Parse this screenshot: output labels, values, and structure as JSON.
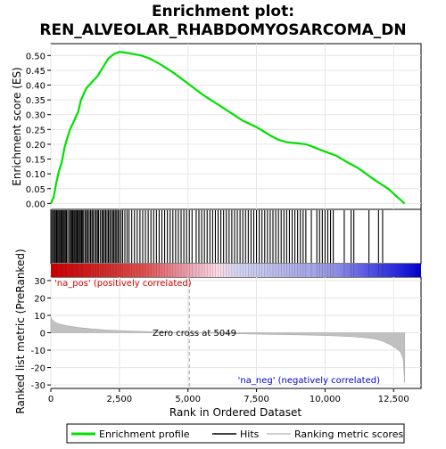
{
  "chart_data": {
    "type": "line",
    "title_lines": [
      "Enrichment plot:",
      "REN_ALVEOLAR_RHABDOMYOSARCOMA_DN"
    ],
    "enrichment": {
      "ylabel": "Enrichment score (ES)",
      "ylim": [
        -0.02,
        0.54
      ],
      "yticks": [
        0.0,
        0.05,
        0.1,
        0.15,
        0.2,
        0.25,
        0.3,
        0.35,
        0.4,
        0.45,
        0.5
      ],
      "ytick_labels": [
        "0.00",
        "0.05",
        "0.10",
        "0.15",
        "0.20",
        "0.25",
        "0.30",
        "0.35",
        "0.40",
        "0.45",
        "0.50"
      ],
      "line_color": "#00e000",
      "x": [
        0,
        100,
        200,
        300,
        400,
        500,
        600,
        700,
        800,
        900,
        1000,
        1100,
        1200,
        1300,
        1400,
        1500,
        1700,
        1900,
        2100,
        2300,
        2500,
        2700,
        3000,
        3300,
        3600,
        4000,
        4500,
        5000,
        5500,
        6000,
        6500,
        7000,
        7500,
        8000,
        8300,
        8600,
        8800,
        9000,
        9300,
        9600,
        10000,
        10400,
        10800,
        11200,
        11500,
        11800,
        12000,
        12300,
        12600,
        12900
      ],
      "y": [
        0.0,
        0.02,
        0.07,
        0.11,
        0.14,
        0.19,
        0.22,
        0.25,
        0.27,
        0.29,
        0.31,
        0.35,
        0.37,
        0.39,
        0.4,
        0.41,
        0.43,
        0.46,
        0.49,
        0.505,
        0.512,
        0.51,
        0.505,
        0.5,
        0.49,
        0.47,
        0.44,
        0.405,
        0.37,
        0.34,
        0.31,
        0.28,
        0.258,
        0.23,
        0.215,
        0.207,
        0.205,
        0.203,
        0.2,
        0.19,
        0.175,
        0.162,
        0.14,
        0.12,
        0.1,
        0.08,
        0.068,
        0.05,
        0.025,
        0.0
      ]
    },
    "hits": {
      "positions": [
        40,
        90,
        130,
        170,
        210,
        250,
        290,
        330,
        370,
        410,
        450,
        490,
        530,
        570,
        620,
        680,
        720,
        760,
        800,
        840,
        880,
        920,
        960,
        1000,
        1040,
        1080,
        1120,
        1160,
        1200,
        1260,
        1300,
        1350,
        1400,
        1450,
        1500,
        1540,
        1600,
        1650,
        1700,
        1740,
        1800,
        1860,
        1900,
        1950,
        2000,
        2050,
        2100,
        2150,
        2200,
        2260,
        2300,
        2350,
        2400,
        2450,
        2500,
        2560,
        2620,
        2700,
        2780,
        2850,
        2950,
        3050,
        3150,
        3250,
        3350,
        3450,
        3550,
        3650,
        3750,
        3850,
        3950,
        4050,
        4150,
        4250,
        4350,
        4450,
        4550,
        4650,
        4750,
        4850,
        4950,
        5050,
        5150,
        5300,
        5400,
        5500,
        5600,
        5700,
        5800,
        5900,
        6000,
        6100,
        6200,
        6300,
        6400,
        6500,
        6600,
        6700,
        6800,
        6900,
        7000,
        7100,
        7200,
        7300,
        7400,
        7500,
        7600,
        7700,
        7800,
        7900,
        8000,
        8100,
        8200,
        8300,
        8400,
        8500,
        8600,
        8700,
        8800,
        8900,
        9000,
        9100,
        9200,
        9300,
        9500,
        9700,
        9800,
        9900,
        10000,
        10100,
        10200,
        10300,
        10700,
        10950,
        11050,
        11600,
        11950,
        12100
      ]
    },
    "colorbar": {
      "stops": [
        {
          "pos": 0.0,
          "color": "#e00000"
        },
        {
          "pos": 0.25,
          "color": "#e05050"
        },
        {
          "pos": 0.39,
          "color": "#f0b0c0"
        },
        {
          "pos": 0.45,
          "color": "#ffdde6"
        },
        {
          "pos": 0.5,
          "color": "#d8d8f6"
        },
        {
          "pos": 0.75,
          "color": "#9a9ae6"
        },
        {
          "pos": 0.85,
          "color": "#5a5ae0"
        },
        {
          "pos": 0.95,
          "color": "#2020d8"
        },
        {
          "pos": 1.0,
          "color": "#0000c8"
        }
      ]
    },
    "ranked": {
      "ylabel": "Ranked list metric (PreRanked)",
      "xlabel": "Rank in Ordered Dataset",
      "ylim": [
        -32,
        32
      ],
      "yticks": [
        -30,
        -20,
        -10,
        0,
        10,
        20,
        30
      ],
      "xlim": [
        0,
        13500
      ],
      "xticks": [
        0,
        2500,
        5000,
        7500,
        10000,
        12500
      ],
      "xtick_labels": [
        "0",
        "2,500",
        "5,000",
        "7,500",
        "10,000",
        "12,500"
      ],
      "fill_color": "#c0c0c0",
      "x": [
        0,
        50,
        150,
        300,
        600,
        1000,
        1500,
        2000,
        3000,
        4000,
        5049,
        6000,
        7000,
        8000,
        9000,
        10000,
        10500,
        11000,
        11500,
        11800,
        12000,
        12200,
        12400,
        12600,
        12750,
        12850,
        12900
      ],
      "y": [
        9,
        7.5,
        6,
        5,
        4,
        3,
        2.2,
        1.6,
        0.9,
        0.4,
        0.0,
        -0.3,
        -0.6,
        -0.9,
        -1.2,
        -1.6,
        -1.9,
        -2.3,
        -2.9,
        -3.5,
        -4.3,
        -5.5,
        -7,
        -9,
        -11,
        -15,
        -29
      ],
      "zero_cross_rank": 5049,
      "zero_cross_label": "Zero cross at 5049",
      "pos_label": "'na_pos' (positively correlated)",
      "neg_label": "'na_neg' (negatively correlated)"
    },
    "legend": [
      {
        "label": "Enrichment profile",
        "color": "#00e000"
      },
      {
        "label": "Hits",
        "color": "#000000"
      },
      {
        "label": "Ranking metric scores",
        "color": "#c0c0c0"
      }
    ]
  }
}
